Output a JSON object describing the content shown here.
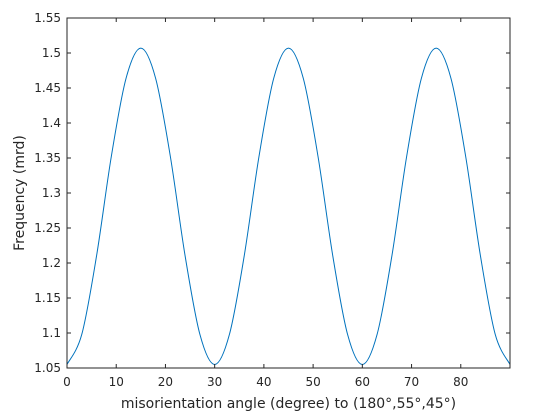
{
  "chart_data": {
    "type": "line",
    "title": "",
    "xlabel": "misorientation angle (degree) to (180°,55°,45°)",
    "ylabel": "Frequency (mrd)",
    "xlim": [
      0,
      90
    ],
    "ylim": [
      1.05,
      1.55
    ],
    "xticks": [
      0,
      10,
      20,
      30,
      40,
      50,
      60,
      70,
      80
    ],
    "xtick_labels": [
      "0",
      "10",
      "20",
      "30",
      "40",
      "50",
      "60",
      "70",
      "80"
    ],
    "yticks": [
      1.05,
      1.1,
      1.15,
      1.2,
      1.25,
      1.3,
      1.35,
      1.4,
      1.45,
      1.5,
      1.55
    ],
    "ytick_labels": [
      "1.05",
      "1.1",
      "1.15",
      "1.2",
      "1.25",
      "1.3",
      "1.35",
      "1.4",
      "1.45",
      "1.5",
      "1.55"
    ],
    "grid": false,
    "legend": "none",
    "colors": {
      "line": "#0072bd",
      "axes": "#262626"
    },
    "series": [
      {
        "x": [
          0,
          3,
          6,
          9,
          12,
          15,
          18,
          21,
          24,
          27,
          30,
          33,
          36,
          39,
          42,
          45,
          48,
          51,
          54,
          57,
          60,
          63,
          66,
          69,
          72,
          75,
          78,
          81,
          84,
          87,
          90
        ],
        "y": [
          1.055,
          1.098,
          1.21,
          1.352,
          1.464,
          1.507,
          1.464,
          1.352,
          1.21,
          1.098,
          1.055,
          1.098,
          1.21,
          1.352,
          1.464,
          1.507,
          1.464,
          1.352,
          1.21,
          1.098,
          1.055,
          1.098,
          1.21,
          1.352,
          1.464,
          1.507,
          1.464,
          1.352,
          1.21,
          1.098,
          1.055
        ]
      }
    ]
  }
}
